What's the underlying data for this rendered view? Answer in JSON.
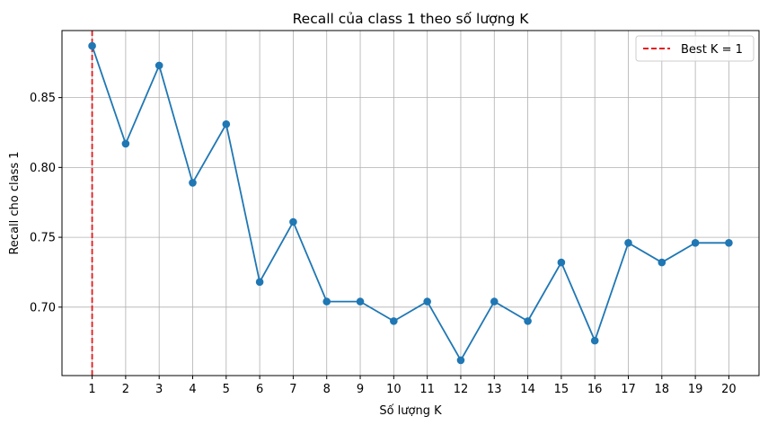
{
  "chart_data": {
    "type": "line",
    "title": "Recall của class 1 theo số lượng K",
    "xlabel": "Số lượng K",
    "ylabel": "Recall cho class 1",
    "x": [
      1,
      2,
      3,
      4,
      5,
      6,
      7,
      8,
      9,
      10,
      11,
      12,
      13,
      14,
      15,
      16,
      17,
      18,
      19,
      20
    ],
    "series": [
      {
        "values": [
          0.887,
          0.817,
          0.873,
          0.789,
          0.831,
          0.718,
          0.761,
          0.704,
          0.704,
          0.69,
          0.704,
          0.662,
          0.704,
          0.69,
          0.732,
          0.676,
          0.746,
          0.732,
          0.746,
          0.746
        ]
      }
    ],
    "xlim": [
      0.1,
      20.9
    ],
    "ylim": [
      0.651,
      0.898
    ],
    "yticks": [
      "0.70",
      "0.75",
      "0.80",
      "0.85"
    ],
    "ytick_values": [
      0.7,
      0.75,
      0.8,
      0.85
    ],
    "grid": true,
    "vline": {
      "x": 1,
      "label": "Best K = 1",
      "color": "#e41a1c"
    },
    "legend_position": "top-right",
    "colors": {
      "line": "#1f77b4",
      "grid": "#b0b0b0",
      "best": "#e41a1c"
    }
  }
}
